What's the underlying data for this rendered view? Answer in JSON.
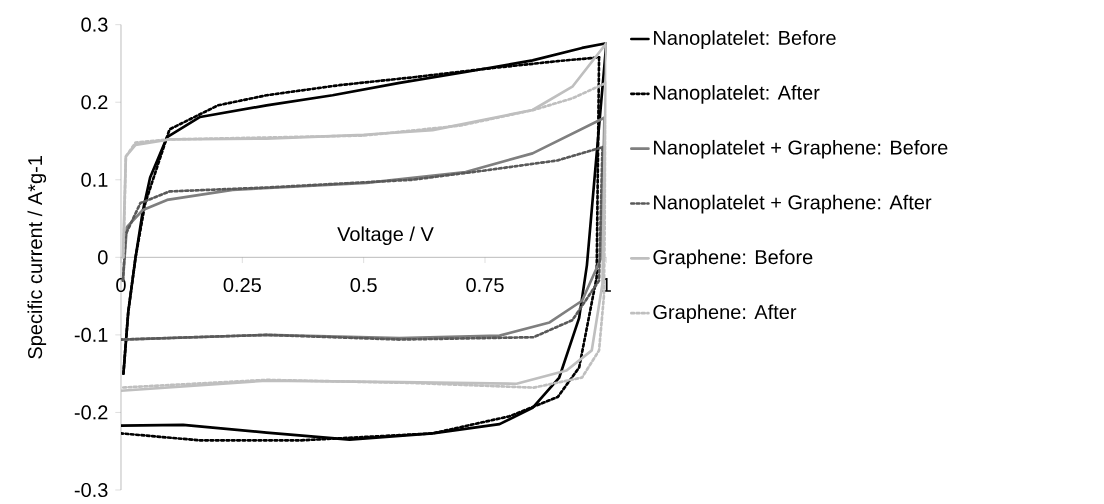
{
  "chart_data": {
    "type": "line",
    "xlabel": "Voltage / V",
    "ylabel": "Specific current / A*g-1",
    "xlim": [
      0,
      1
    ],
    "ylim": [
      -0.3,
      0.3
    ],
    "xticks": [
      0,
      0.25,
      0.5,
      0.75,
      1
    ],
    "yticks": [
      -0.3,
      -0.2,
      -0.1,
      0,
      0.1,
      0.2,
      0.3
    ],
    "legend": "right",
    "grid": false,
    "marker": "none",
    "series": [
      {
        "name": "Nanoplatelet: Before",
        "color": "#000000",
        "line_style": "solid",
        "x": [
          0.005,
          0.015,
          0.03,
          0.045,
          0.06,
          0.095,
          0.163,
          0.3,
          0.436,
          0.574,
          0.71,
          0.848,
          0.95,
          1.0
        ],
        "values": [
          -0.15,
          -0.07,
          0,
          0.06,
          0.103,
          0.155,
          0.181,
          0.196,
          0.209,
          0.225,
          0.239,
          0.254,
          0.27,
          0.276
        ]
      },
      {
        "color": "#000000",
        "line_style": "solid",
        "x": [
          1.0,
          0.96,
          0.944,
          0.903,
          0.848,
          0.78,
          0.642,
          0.471,
          0.3,
          0.128,
          0
        ],
        "values": [
          0.276,
          -0.01,
          -0.078,
          -0.155,
          -0.194,
          -0.215,
          -0.227,
          -0.235,
          -0.226,
          -0.216,
          -0.217
        ]
      },
      {
        "name": "Nanoplatelet: After",
        "color": "#000000",
        "line_style": "dotted",
        "x": [
          0.005,
          0.015,
          0.03,
          0.05,
          0.1,
          0.2,
          0.3,
          0.45,
          0.6,
          0.75,
          0.9,
          0.97,
          0.985
        ],
        "values": [
          -0.15,
          -0.07,
          0,
          0.07,
          0.165,
          0.196,
          0.209,
          0.222,
          0.232,
          0.243,
          0.253,
          0.257,
          0.258
        ]
      },
      {
        "color": "#000000",
        "line_style": "dotted",
        "x": [
          0.985,
          0.98,
          0.944,
          0.9,
          0.8,
          0.642,
          0.37,
          0.163,
          0
        ],
        "values": [
          0.258,
          -0.026,
          -0.142,
          -0.18,
          -0.205,
          -0.227,
          -0.236,
          -0.236,
          -0.227
        ]
      },
      {
        "name": "Nanoplatelet + Graphene: Before",
        "color": "#7f7f7f",
        "line_style": "solid",
        "x": [
          0.004,
          0.012,
          0.045,
          0.095,
          0.23,
          0.506,
          0.71,
          0.848,
          0.996
        ],
        "values": [
          -0.03,
          0.039,
          0.061,
          0.074,
          0.087,
          0.096,
          0.11,
          0.134,
          0.18
        ]
      },
      {
        "color": "#7f7f7f",
        "line_style": "solid",
        "x": [
          0.996,
          0.99,
          0.95,
          0.883,
          0.78,
          0.574,
          0.3,
          0
        ],
        "values": [
          0.18,
          0,
          -0.056,
          -0.084,
          -0.101,
          -0.104,
          -0.1,
          -0.106
        ]
      },
      {
        "name": "Nanoplatelet + Graphene: After",
        "color": "#595959",
        "line_style": "dotted",
        "x": [
          0.004,
          0.01,
          0.04,
          0.1,
          0.3,
          0.6,
          0.75,
          0.9,
          0.992
        ],
        "values": [
          -0.03,
          0.03,
          0.07,
          0.085,
          0.09,
          0.1,
          0.112,
          0.125,
          0.142
        ]
      },
      {
        "color": "#595959",
        "line_style": "dotted",
        "x": [
          0.992,
          0.985,
          0.93,
          0.85,
          0.574,
          0.3,
          0
        ],
        "values": [
          0.142,
          -0.03,
          -0.081,
          -0.103,
          -0.106,
          -0.1,
          -0.106
        ]
      },
      {
        "name": "Graphene: Before",
        "color": "#bfbfbf",
        "line_style": "solid",
        "x": [
          0.004,
          0.01,
          0.03,
          0.1,
          0.3,
          0.5,
          0.642,
          0.848,
          0.93,
          1.0
        ],
        "values": [
          0,
          0.13,
          0.145,
          0.152,
          0.153,
          0.158,
          0.164,
          0.19,
          0.22,
          0.276
        ]
      },
      {
        "color": "#bfbfbf",
        "line_style": "solid",
        "x": [
          1.0,
          0.992,
          0.97,
          0.918,
          0.815,
          0.574,
          0.3,
          0
        ],
        "values": [
          0.276,
          -0.034,
          -0.12,
          -0.146,
          -0.163,
          -0.161,
          -0.159,
          -0.172
        ]
      },
      {
        "name": "Graphene: After",
        "color": "#bfbfbf",
        "line_style": "dotted",
        "x": [
          0.005,
          0.01,
          0.03,
          0.1,
          0.5,
          0.7,
          0.85,
          0.93,
          1.0
        ],
        "values": [
          0,
          0.13,
          0.148,
          0.152,
          0.157,
          0.17,
          0.19,
          0.205,
          0.225
        ]
      },
      {
        "color": "#bfbfbf",
        "line_style": "dotted",
        "x": [
          1.0,
          0.995,
          0.985,
          0.95,
          0.85,
          0.6,
          0.3,
          0
        ],
        "values": [
          0.225,
          -0.05,
          -0.12,
          -0.155,
          -0.168,
          -0.162,
          -0.158,
          -0.168
        ]
      }
    ]
  }
}
